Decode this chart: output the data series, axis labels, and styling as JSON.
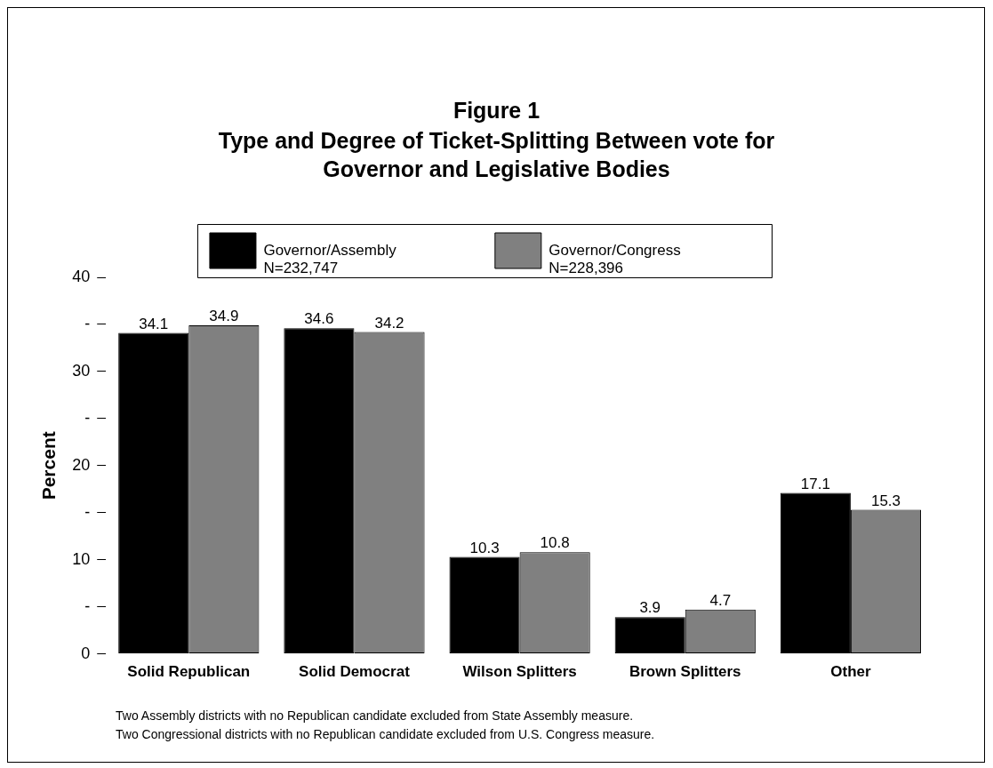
{
  "chart_data": {
    "type": "bar",
    "title": "Figure 1",
    "subtitle": "Type and Degree of Ticket-Splitting Between vote for Governor and Legislative Bodies",
    "ylabel": "Percent",
    "categories": [
      "Solid Republican",
      "Solid Democrat",
      "Wilson Splitters",
      "Brown Splitters",
      "Other"
    ],
    "series": [
      {
        "name": "Governor/Assembly\nN=232,747",
        "color": "#000000",
        "values": [
          34.1,
          34.6,
          10.3,
          3.9,
          17.1
        ]
      },
      {
        "name": "Governor/Congress\nN=228,396",
        "color": "#808080",
        "values": [
          34.9,
          34.2,
          10.8,
          4.7,
          15.3
        ]
      }
    ],
    "ylim": [
      0,
      40
    ],
    "yticks": [
      0,
      {
        "value": 5,
        "label": "-"
      },
      10,
      {
        "value": 15,
        "label": "-"
      },
      20,
      {
        "value": 25,
        "label": "-"
      },
      30,
      {
        "value": 35,
        "label": "-"
      },
      40
    ],
    "data_labels": true,
    "legend": "top",
    "annotations": [
      "Two Assembly districts with no Republican candidate excluded from State Assembly measure.",
      "Two Congressional districts with no Republican candidate excluded from U.S. Congress measure."
    ]
  }
}
